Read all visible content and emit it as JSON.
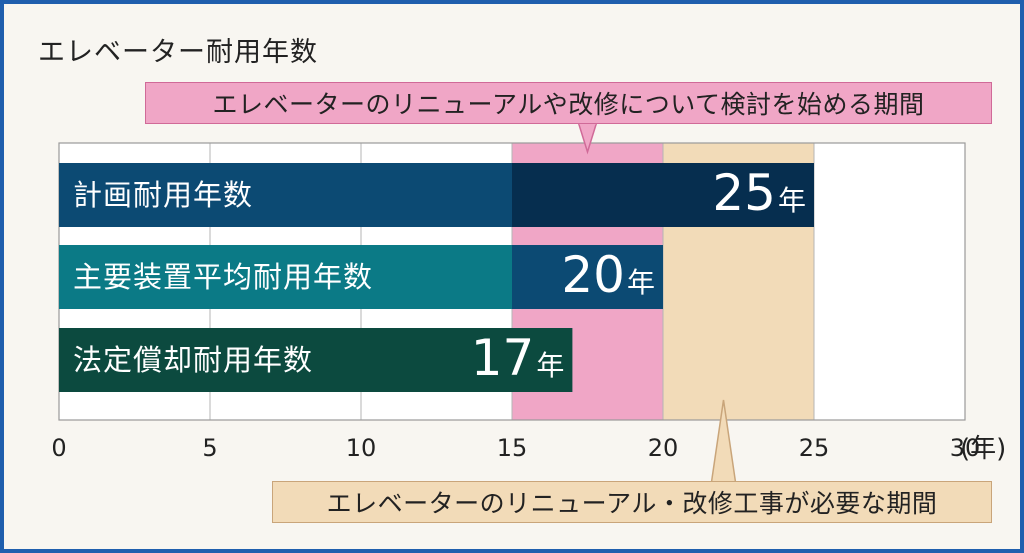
{
  "title": "エレベーター耐用年数",
  "callouts": {
    "top": "エレベーターのリニューアルや改修について検討を始める期間",
    "bottom": "エレベーターのリニューアル・改修工事が必要な期間"
  },
  "x_unit": "(年)",
  "value_unit": "年",
  "colors": {
    "frame": "#1f5fae",
    "pink_zone": "#f0a6c6",
    "beige_zone": "#f2dbb8",
    "bar1": "#0c4a73",
    "bar1_overlap": "#062e4f",
    "bar2": "#0b7a86",
    "bar2_overlap": "#0c4a73",
    "bar3": "#0c4a3f"
  },
  "chart_data": {
    "type": "bar",
    "orientation": "horizontal",
    "categories": [
      "計画耐用年数",
      "主要装置平均耐用年数",
      "法定償却耐用年数"
    ],
    "values": [
      25,
      20,
      17
    ],
    "value_labels": [
      "25",
      "20",
      "17"
    ],
    "xlim": [
      0,
      30
    ],
    "x_ticks": [
      "0",
      "5",
      "10",
      "15",
      "20",
      "25",
      "30"
    ],
    "x_tick_values": [
      0,
      5,
      10,
      15,
      20,
      25,
      30
    ],
    "highlight_ranges": [
      {
        "from": 15,
        "to": 20,
        "label_ref": "callouts.top"
      },
      {
        "from": 20,
        "to": 25,
        "label_ref": "callouts.bottom"
      }
    ],
    "grid": true
  }
}
